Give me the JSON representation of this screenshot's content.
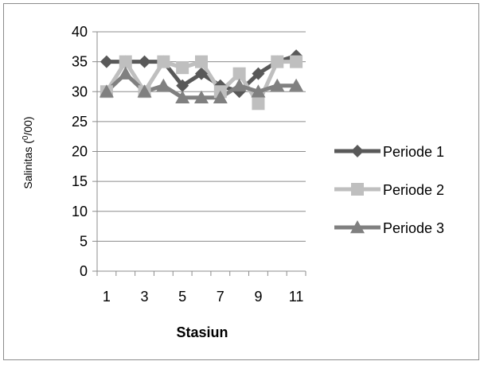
{
  "chart_data": {
    "type": "line",
    "title": "",
    "xlabel": "Stasiun",
    "ylabel": {
      "main": "Salinitas (",
      "sup": "0",
      "rest": "/00)"
    },
    "x": [
      1,
      2,
      3,
      4,
      5,
      6,
      7,
      8,
      9,
      10,
      11
    ],
    "x_tick_labels": [
      "1",
      "3",
      "5",
      "7",
      "9",
      "11"
    ],
    "ylim": [
      0,
      40
    ],
    "y_ticks": [
      0,
      5,
      10,
      15,
      20,
      25,
      30,
      35,
      40
    ],
    "grid": "horizontal",
    "legend_position": "right",
    "series": [
      {
        "name": "Periode 1",
        "marker": "diamond",
        "color": "#595959",
        "values": [
          35,
          35,
          35,
          35,
          31,
          33,
          31,
          30,
          33,
          35,
          36
        ]
      },
      {
        "name": "Periode 2",
        "marker": "square",
        "color": "#bfbfbf",
        "values": [
          30,
          35,
          30,
          35,
          34,
          35,
          30,
          33,
          28,
          35,
          35
        ]
      },
      {
        "name": "Periode 3",
        "marker": "triangle",
        "color": "#808080",
        "values": [
          30,
          33,
          30,
          31,
          29,
          29,
          29,
          31,
          30,
          31,
          31
        ]
      }
    ]
  }
}
